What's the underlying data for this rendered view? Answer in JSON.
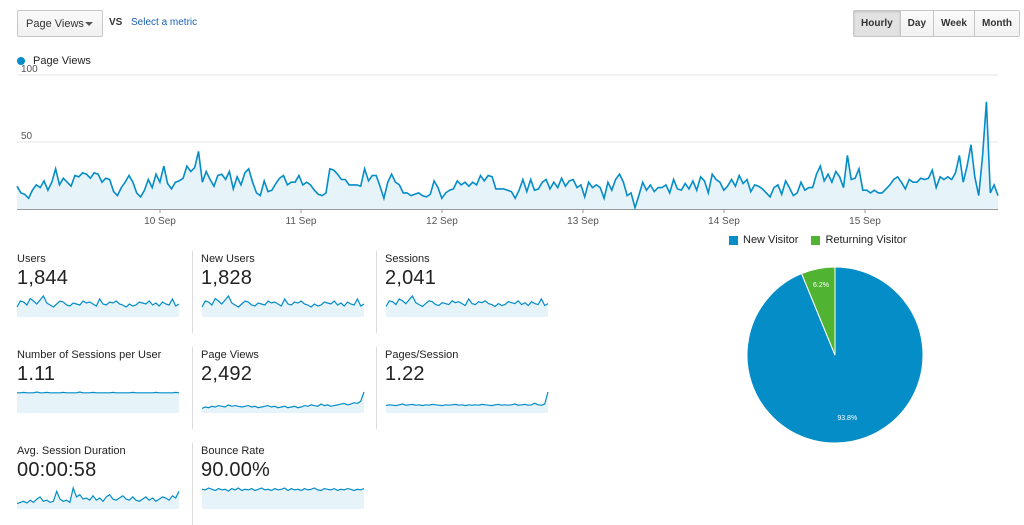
{
  "toolbar": {
    "metric_select_label": "Page Views",
    "vs_label": "VS",
    "select_metric_label": "Select a metric",
    "periods": [
      "Hourly",
      "Day",
      "Week",
      "Month"
    ],
    "active_period": "Hourly"
  },
  "colors": {
    "series": "#058dc7",
    "series_fill": "#e6f3f9",
    "returning": "#50b432"
  },
  "chart_data": {
    "type": "area",
    "series": [
      {
        "name": "Page Views",
        "values": [
          17,
          12,
          11,
          8,
          14,
          18,
          16,
          21,
          14,
          20,
          30,
          18,
          23,
          20,
          17,
          25,
          24,
          27,
          26,
          23,
          27,
          26,
          20,
          23,
          22,
          13,
          10,
          16,
          20,
          25,
          20,
          12,
          9,
          14,
          22,
          16,
          26,
          20,
          32,
          19,
          15,
          20,
          21,
          23,
          32,
          28,
          31,
          43,
          20,
          28,
          22,
          17,
          25,
          26,
          22,
          28,
          15,
          24,
          18,
          27,
          30,
          20,
          12,
          10,
          21,
          13,
          14,
          19,
          23,
          25,
          18,
          20,
          20,
          25,
          18,
          20,
          18,
          14,
          11,
          10,
          12,
          30,
          29,
          26,
          22,
          22,
          18,
          18,
          18,
          17,
          30,
          21,
          25,
          25,
          17,
          8,
          20,
          26,
          20,
          18,
          12,
          12,
          10,
          11,
          12,
          10,
          9,
          11,
          21,
          16,
          8,
          12,
          14,
          15,
          21,
          18,
          20,
          17,
          20,
          18,
          25,
          21,
          25,
          24,
          15,
          15,
          15,
          14,
          13,
          8,
          14,
          22,
          13,
          22,
          14,
          15,
          20,
          22,
          15,
          20,
          16,
          23,
          17,
          21,
          22,
          16,
          18,
          9,
          20,
          16,
          18,
          16,
          8,
          20,
          14,
          22,
          26,
          20,
          10,
          12,
          1,
          10,
          20,
          14,
          18,
          13,
          16,
          16,
          18,
          12,
          22,
          15,
          14,
          19,
          15,
          21,
          14,
          24,
          21,
          12,
          26,
          22,
          20,
          14,
          17,
          22,
          17,
          25,
          19,
          22,
          13,
          18,
          17,
          15,
          12,
          9,
          16,
          18,
          11,
          21,
          16,
          10,
          12,
          20,
          14,
          16,
          16,
          26,
          32,
          21,
          26,
          20,
          28,
          24,
          16,
          40,
          22,
          23,
          30,
          14,
          14,
          12,
          14,
          12,
          12,
          15,
          18,
          22,
          24,
          20,
          15,
          22,
          20,
          20,
          23,
          22,
          23,
          29,
          16,
          24,
          22,
          24,
          22,
          27,
          40,
          20,
          32,
          48,
          24,
          10,
          40,
          80,
          12,
          18,
          10
        ]
      }
    ],
    "x_ticks": [
      "10 Sep",
      "11 Sep",
      "12 Sep",
      "13 Sep",
      "14 Sep",
      "15 Sep"
    ],
    "y_ticks": [
      "100",
      "50"
    ],
    "ylim": [
      0,
      100
    ],
    "grid": true
  },
  "tiles": [
    {
      "label": "Users",
      "value": "1,844",
      "spark": [
        18,
        30,
        28,
        22,
        35,
        30,
        24,
        32,
        40,
        26,
        22,
        18,
        24,
        30,
        28,
        22,
        20,
        26,
        24,
        22,
        30,
        26,
        28,
        24,
        20,
        34,
        24,
        22,
        28,
        26,
        30,
        24,
        22,
        18,
        24,
        20,
        22,
        28,
        26,
        24,
        30,
        22,
        26,
        20,
        28,
        24,
        22,
        34,
        20,
        24
      ]
    },
    {
      "label": "New Users",
      "value": "1,828",
      "spark": [
        18,
        30,
        28,
        22,
        35,
        30,
        24,
        32,
        40,
        26,
        22,
        18,
        24,
        30,
        28,
        22,
        20,
        26,
        24,
        22,
        30,
        26,
        28,
        24,
        20,
        34,
        24,
        22,
        28,
        26,
        30,
        24,
        22,
        18,
        24,
        20,
        22,
        28,
        26,
        24,
        30,
        22,
        26,
        20,
        28,
        24,
        22,
        34,
        20,
        24
      ]
    },
    {
      "label": "Sessions",
      "value": "2,041",
      "spark": [
        20,
        32,
        30,
        24,
        36,
        32,
        26,
        34,
        42,
        28,
        24,
        20,
        26,
        32,
        30,
        24,
        22,
        28,
        26,
        24,
        32,
        28,
        30,
        26,
        22,
        36,
        26,
        24,
        30,
        28,
        32,
        26,
        24,
        20,
        26,
        22,
        24,
        30,
        28,
        26,
        32,
        24,
        28,
        22,
        30,
        26,
        24,
        36,
        22,
        26
      ]
    },
    {
      "label": "Number of Sessions per User",
      "value": "1.11",
      "spark": [
        50,
        50,
        51,
        50,
        50,
        50,
        52,
        50,
        50,
        51,
        50,
        50,
        50,
        50,
        51,
        50,
        50,
        50,
        50,
        52,
        50,
        50,
        50,
        51,
        50,
        50,
        50,
        50,
        50,
        51,
        50,
        50,
        50,
        50,
        50,
        51,
        50,
        50,
        50,
        50,
        50,
        50,
        51,
        50,
        50,
        50,
        50,
        50,
        51,
        50
      ]
    },
    {
      "label": "Page Views",
      "value": "2,492",
      "spark": [
        10,
        14,
        12,
        16,
        14,
        18,
        16,
        14,
        20,
        16,
        18,
        16,
        14,
        16,
        18,
        14,
        16,
        12,
        14,
        16,
        18,
        14,
        16,
        12,
        14,
        16,
        12,
        14,
        16,
        12,
        14,
        18,
        16,
        20,
        18,
        16,
        22,
        18,
        20,
        16,
        18,
        20,
        22,
        24,
        20,
        22,
        26,
        24,
        30,
        56
      ]
    },
    {
      "label": "Pages/Session",
      "value": "1.22",
      "spark": [
        16,
        18,
        17,
        16,
        18,
        20,
        17,
        18,
        19,
        17,
        18,
        16,
        18,
        17,
        19,
        18,
        17,
        16,
        18,
        17,
        18,
        19,
        17,
        18,
        16,
        18,
        17,
        18,
        17,
        19,
        18,
        17,
        16,
        18,
        19,
        17,
        18,
        17,
        18,
        20,
        17,
        18,
        19,
        17,
        18,
        22,
        18,
        17,
        20,
        50
      ]
    },
    {
      "label": "Avg. Session Duration",
      "value": "00:00:58",
      "spark": [
        8,
        10,
        12,
        9,
        14,
        10,
        16,
        20,
        12,
        14,
        10,
        12,
        30,
        16,
        12,
        14,
        10,
        36,
        20,
        24,
        16,
        18,
        14,
        22,
        14,
        18,
        12,
        20,
        24,
        16,
        14,
        18,
        22,
        16,
        14,
        20,
        14,
        12,
        16,
        20,
        14,
        18,
        12,
        16,
        20,
        18,
        14,
        22,
        18,
        30
      ]
    },
    {
      "label": "Bounce Rate",
      "value": "90.00%",
      "spark": [
        60,
        58,
        64,
        60,
        56,
        62,
        58,
        60,
        54,
        62,
        58,
        64,
        56,
        60,
        58,
        62,
        56,
        60,
        64,
        58,
        60,
        56,
        62,
        58,
        60,
        64,
        56,
        62,
        58,
        60,
        56,
        62,
        58,
        60,
        64,
        58,
        56,
        62,
        60,
        58,
        62,
        56,
        60,
        58,
        62,
        60,
        56,
        60,
        58,
        62
      ]
    }
  ],
  "pie": {
    "legend": [
      {
        "label": "New Visitor",
        "color": "#058dc7"
      },
      {
        "label": "Returning Visitor",
        "color": "#50b432"
      }
    ],
    "chart_data": {
      "type": "pie",
      "categories": [
        "New Visitor",
        "Returning Visitor"
      ],
      "values": [
        93.8,
        6.2
      ],
      "labels": [
        "93.8%",
        "6.2%"
      ]
    }
  }
}
